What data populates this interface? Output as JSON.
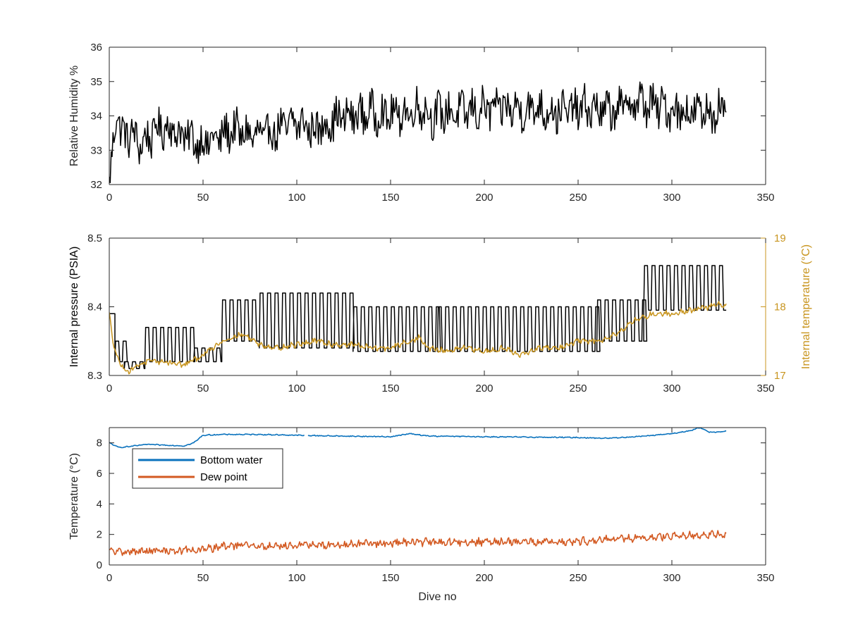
{
  "figure": {
    "background": "#ffffff"
  },
  "chart_data": [
    {
      "id": "humidity",
      "type": "line",
      "xlabel": "",
      "ylabel": "Relative Humidity %",
      "xlim": [
        0,
        350
      ],
      "ylim": [
        32,
        36
      ],
      "xticks": [
        "0",
        "50",
        "100",
        "150",
        "200",
        "250",
        "300",
        "350"
      ],
      "yticks": [
        "32",
        "33",
        "34",
        "35",
        "36"
      ],
      "grid": false,
      "series": [
        {
          "color": "#000000",
          "anchors_x": [
            0,
            2,
            4,
            6,
            8,
            12,
            15,
            20,
            25,
            30,
            40,
            45,
            50,
            60,
            65,
            70,
            80,
            90,
            100,
            110,
            120,
            130,
            140,
            150,
            160,
            167,
            170,
            180,
            190,
            200,
            210,
            220,
            230,
            240,
            250,
            260,
            265,
            270,
            280,
            290,
            300,
            310,
            320,
            325,
            329
          ],
          "anchors_y": [
            32.0,
            33.0,
            34.3,
            33.6,
            33.4,
            33.5,
            33.2,
            33.3,
            33.6,
            33.7,
            33.4,
            33.3,
            33.2,
            33.4,
            33.6,
            33.5,
            33.4,
            33.6,
            33.8,
            33.6,
            33.9,
            34.0,
            34.1,
            34.0,
            34.1,
            34.3,
            34.0,
            34.1,
            34.1,
            34.2,
            34.2,
            34.2,
            34.2,
            34.1,
            34.2,
            34.2,
            34.1,
            34.2,
            34.4,
            34.3,
            34.2,
            34.1,
            34.1,
            34.2,
            34.1
          ],
          "noise_amplitude": 0.75,
          "period": 3
        }
      ]
    },
    {
      "id": "pressure",
      "type": "line",
      "xlabel": "",
      "ylabel": "Internal pressure (PSIA)",
      "ylabel_right": "Internal temperature (°C)",
      "xlim": [
        0,
        350
      ],
      "ylim": [
        8.3,
        8.5
      ],
      "ylim_right": [
        17,
        19
      ],
      "xticks": [
        "0",
        "50",
        "100",
        "150",
        "200",
        "250",
        "300",
        "350"
      ],
      "yticks": [
        "8.3",
        "8.4",
        "8.5"
      ],
      "yticks_right": [
        "17",
        "18",
        "19"
      ],
      "right_axis_color": "#c8951f",
      "grid": false,
      "series": [
        {
          "axis": "left",
          "color": "#000000",
          "kind": "oscillating",
          "segments": [
            {
              "from": 0,
              "to": 3,
              "low": 8.39,
              "high": 8.39
            },
            {
              "from": 3,
              "to": 8,
              "low": 8.32,
              "high": 8.35
            },
            {
              "from": 8,
              "to": 19,
              "low": 8.31,
              "high": 8.32
            },
            {
              "from": 19,
              "to": 45,
              "low": 8.32,
              "high": 8.37
            },
            {
              "from": 45,
              "to": 60,
              "low": 8.32,
              "high": 8.34
            },
            {
              "from": 60,
              "to": 80,
              "low": 8.35,
              "high": 8.41
            },
            {
              "from": 80,
              "to": 130,
              "low": 8.34,
              "high": 8.42
            },
            {
              "from": 130,
              "to": 175,
              "low": 8.335,
              "high": 8.4
            },
            {
              "from": 175,
              "to": 260,
              "low": 8.335,
              "high": 8.4
            },
            {
              "from": 260,
              "to": 285,
              "low": 8.35,
              "high": 8.41
            },
            {
              "from": 285,
              "to": 329,
              "low": 8.395,
              "high": 8.46
            }
          ],
          "period": 4
        },
        {
          "axis": "right",
          "color": "#c8951f",
          "anchors_x": [
            0,
            2,
            5,
            10,
            15,
            20,
            30,
            40,
            50,
            60,
            65,
            70,
            75,
            80,
            90,
            100,
            110,
            120,
            130,
            140,
            150,
            160,
            165,
            170,
            180,
            190,
            200,
            210,
            220,
            230,
            240,
            250,
            260,
            270,
            280,
            290,
            300,
            310,
            320,
            325,
            329
          ],
          "anchors_y": [
            17.9,
            17.5,
            17.2,
            17.05,
            17.15,
            17.2,
            17.2,
            17.15,
            17.3,
            17.5,
            17.55,
            17.6,
            17.55,
            17.45,
            17.4,
            17.45,
            17.5,
            17.45,
            17.45,
            17.4,
            17.4,
            17.5,
            17.55,
            17.4,
            17.35,
            17.4,
            17.35,
            17.4,
            17.3,
            17.4,
            17.4,
            17.5,
            17.5,
            17.6,
            17.8,
            17.9,
            17.9,
            17.95,
            18.0,
            18.05,
            18.0
          ],
          "noise_amplitude": 0.05,
          "period": 2
        }
      ]
    },
    {
      "id": "temperature",
      "type": "line",
      "xlabel": "Dive no",
      "ylabel": "Temperature (°C)",
      "xlim": [
        0,
        350
      ],
      "ylim": [
        0,
        9
      ],
      "xticks": [
        "0",
        "50",
        "100",
        "150",
        "200",
        "250",
        "300",
        "350"
      ],
      "yticks": [
        "0",
        "2",
        "4",
        "6",
        "8"
      ],
      "grid": false,
      "legend_position": "upper-left",
      "series": [
        {
          "name": "Bottom water",
          "color": "#0a72bd",
          "anchors_x": [
            0,
            5,
            10,
            20,
            30,
            40,
            45,
            50,
            60,
            80,
            100,
            120,
            150,
            160,
            170,
            200,
            250,
            265,
            280,
            300,
            310,
            315,
            320,
            329
          ],
          "anchors_y": [
            8.0,
            7.7,
            7.75,
            7.9,
            7.85,
            7.8,
            8.0,
            8.5,
            8.55,
            8.55,
            8.5,
            8.45,
            8.4,
            8.6,
            8.45,
            8.4,
            8.35,
            8.3,
            8.4,
            8.6,
            8.8,
            9.0,
            8.7,
            8.75
          ],
          "noise_amplitude": 0.04,
          "period": 2
        },
        {
          "name": "Dew point",
          "color": "#d35a22",
          "anchors_x": [
            0,
            10,
            20,
            40,
            50,
            60,
            70,
            80,
            100,
            120,
            140,
            160,
            170,
            200,
            220,
            250,
            270,
            290,
            300,
            320,
            329
          ],
          "anchors_y": [
            0.9,
            0.85,
            0.9,
            0.95,
            1.0,
            1.2,
            1.3,
            1.2,
            1.3,
            1.3,
            1.4,
            1.5,
            1.5,
            1.5,
            1.5,
            1.55,
            1.7,
            1.8,
            1.9,
            2.0,
            2.0
          ],
          "noise_amplitude": 0.3,
          "period": 2
        }
      ]
    }
  ]
}
